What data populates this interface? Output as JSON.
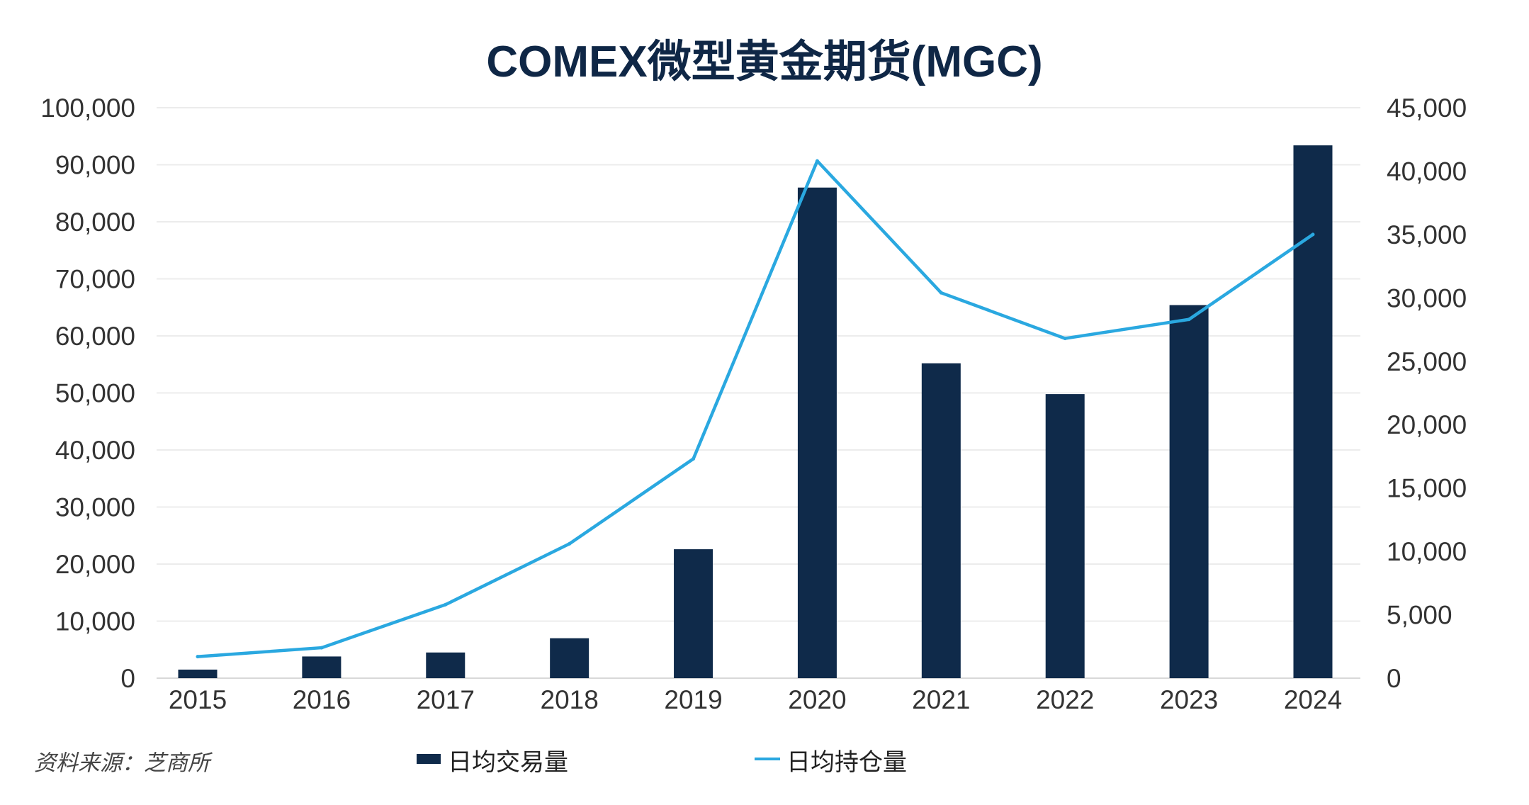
{
  "chart_data": {
    "type": "bar+line",
    "title": "COMEX微型黄金期货(MGC)",
    "categories": [
      "2015",
      "2016",
      "2017",
      "2018",
      "2019",
      "2020",
      "2021",
      "2022",
      "2023",
      "2024"
    ],
    "series": [
      {
        "name": "日均交易量",
        "type": "bar",
        "axis": "left",
        "color": "#0f2a4a",
        "values": [
          1500,
          3800,
          4500,
          7000,
          22600,
          86000,
          55200,
          49800,
          65400,
          93400
        ]
      },
      {
        "name": "日均持仓量",
        "type": "line",
        "axis": "right",
        "color": "#2aa8e0",
        "values": [
          1700,
          2400,
          5800,
          10600,
          17300,
          40800,
          30400,
          26800,
          28300,
          35000
        ]
      }
    ],
    "y_left": {
      "range": [
        0,
        100000
      ],
      "ticks": [
        "0",
        "10,000",
        "20,000",
        "30,000",
        "40,000",
        "50,000",
        "60,000",
        "70,000",
        "80,000",
        "90,000",
        "100,000"
      ]
    },
    "y_right": {
      "range": [
        0,
        45000
      ],
      "ticks": [
        "0",
        "5,000",
        "10,000",
        "15,000",
        "20,000",
        "25,000",
        "30,000",
        "35,000",
        "40,000",
        "45,000"
      ]
    },
    "grid": true,
    "legend_position": "bottom",
    "source": "资料来源：芝商所"
  }
}
